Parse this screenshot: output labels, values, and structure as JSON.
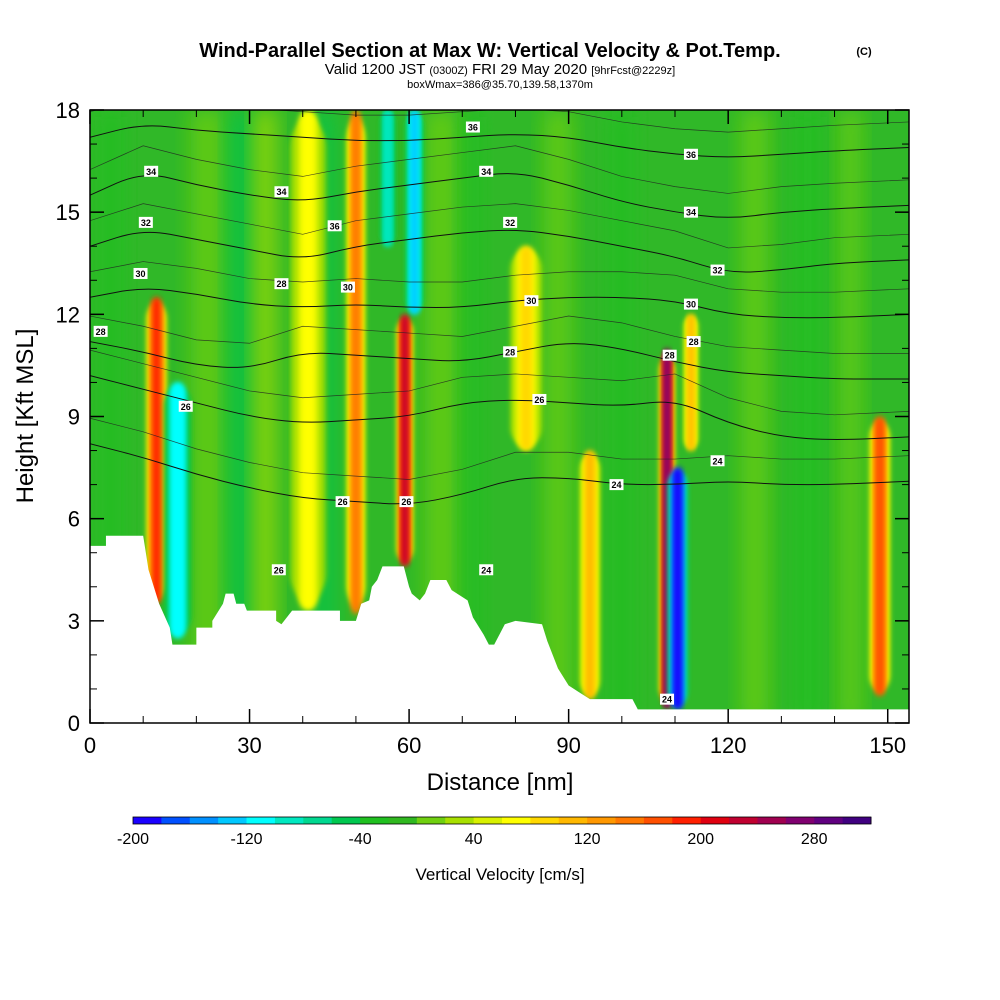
{
  "title": {
    "main": "Wind-Parallel Section at Max W: Vertical Velocity & Pot.Temp.",
    "main_suffix": "(C)",
    "valid_prefix": "Valid 1200 JST",
    "valid_zulu": "(0300Z)",
    "valid_date": "FRI 29 May 2020",
    "forecast": "[9hrFcst@2229z]",
    "box_info": "boxWmax=386@35.70,139.58,1370m"
  },
  "chart_data": {
    "type": "heatmap",
    "xlabel": "Distance [nm]",
    "ylabel": "Height [Kft MSL]",
    "xlim": [
      0,
      154
    ],
    "ylim": [
      0,
      18
    ],
    "x_ticks": [
      "0",
      "30",
      "60",
      "90",
      "120",
      "150"
    ],
    "y_ticks": [
      "0",
      "3",
      "6",
      "9",
      "12",
      "15",
      "18"
    ],
    "x_tick_values": [
      0,
      30,
      60,
      90,
      120,
      150
    ],
    "y_tick_values": [
      0,
      3,
      6,
      9,
      12,
      15,
      18
    ],
    "colorbar": {
      "title": "Vertical Velocity [cm/s]",
      "min": -200,
      "max": 320,
      "step": 20,
      "labels": [
        "-200",
        "-120",
        "-40",
        "40",
        "120",
        "200",
        "280"
      ],
      "label_values": [
        -200,
        -120,
        -40,
        40,
        120,
        200,
        280
      ],
      "colors": [
        "#1a00ff",
        "#0050ff",
        "#0090ff",
        "#00c8ff",
        "#00ffff",
        "#00e8c0",
        "#00d890",
        "#00c850",
        "#20c020",
        "#30b820",
        "#70d010",
        "#a8e000",
        "#d8f000",
        "#ffff00",
        "#ffd800",
        "#ffb800",
        "#ff9800",
        "#ff7800",
        "#ff5000",
        "#ff2000",
        "#e00010",
        "#c00030",
        "#a00050",
        "#800070",
        "#600080",
        "#400080"
      ]
    },
    "terrain_height_kft": [
      [
        0,
        5.2
      ],
      [
        3,
        5.2
      ],
      [
        3,
        5.5
      ],
      [
        10,
        5.5
      ],
      [
        11,
        4.5
      ],
      [
        13,
        3.5
      ],
      [
        15,
        2.8
      ],
      [
        15.5,
        2.3
      ],
      [
        20,
        2.3
      ],
      [
        20,
        2.8
      ],
      [
        23,
        2.8
      ],
      [
        23,
        3.0
      ],
      [
        25,
        3.5
      ],
      [
        25.5,
        3.8
      ],
      [
        27,
        3.8
      ],
      [
        27.5,
        3.5
      ],
      [
        29,
        3.5
      ],
      [
        29.5,
        3.3
      ],
      [
        35,
        3.3
      ],
      [
        35,
        3.0
      ],
      [
        36,
        2.9
      ],
      [
        38,
        3.3
      ],
      [
        47,
        3.3
      ],
      [
        47,
        3.0
      ],
      [
        50,
        3.0
      ],
      [
        51,
        3.5
      ],
      [
        52.5,
        3.6
      ],
      [
        53,
        4.0
      ],
      [
        54,
        4.2
      ],
      [
        55,
        4.6
      ],
      [
        59,
        4.6
      ],
      [
        60,
        4.0
      ],
      [
        60.5,
        3.8
      ],
      [
        62,
        3.6
      ],
      [
        63,
        3.8
      ],
      [
        64,
        4.2
      ],
      [
        67,
        4.2
      ],
      [
        68,
        3.9
      ],
      [
        71,
        3.6
      ],
      [
        72,
        3.1
      ],
      [
        74,
        2.6
      ],
      [
        75,
        2.3
      ],
      [
        76,
        2.3
      ],
      [
        77,
        2.6
      ],
      [
        78,
        2.9
      ],
      [
        80,
        3.0
      ],
      [
        85,
        2.9
      ],
      [
        86,
        2.4
      ],
      [
        88,
        1.6
      ],
      [
        90,
        1.1
      ],
      [
        92,
        0.9
      ],
      [
        94,
        0.7
      ],
      [
        102,
        0.7
      ],
      [
        103,
        0.4
      ],
      [
        154,
        0.4
      ]
    ],
    "terrain_start_kft": [
      [
        0,
        5.2
      ]
    ],
    "updrafts": [
      {
        "x": 12.5,
        "width": 1.6,
        "ymin": 3.5,
        "ymax": 12.5,
        "w_max": 180
      },
      {
        "x": 50,
        "width": 1.5,
        "ymin": 3.2,
        "ymax": 18,
        "w_max": 150
      },
      {
        "x": 59.2,
        "width": 1.3,
        "ymin": 4.6,
        "ymax": 12,
        "w_max": 220
      },
      {
        "x": 94,
        "width": 1.6,
        "ymin": 0.7,
        "ymax": 8,
        "w_max": 110
      },
      {
        "x": 108.5,
        "width": 1.2,
        "ymin": 0.4,
        "ymax": 11,
        "w_max": 260
      },
      {
        "x": 113,
        "width": 1.1,
        "ymin": 8,
        "ymax": 12,
        "w_max": 110
      },
      {
        "x": 148.5,
        "width": 1.6,
        "ymin": 0.8,
        "ymax": 9,
        "w_max": 170
      },
      {
        "x": 82,
        "width": 2.5,
        "ymin": 8,
        "ymax": 14,
        "w_max": 80
      },
      {
        "x": 41,
        "width": 3,
        "ymin": 3.3,
        "ymax": 18,
        "w_max": 60
      }
    ],
    "downdrafts": [
      {
        "x": 16.5,
        "width": 2.2,
        "ymin": 2.5,
        "ymax": 10,
        "w_min": -120
      },
      {
        "x": 110.5,
        "width": 1.6,
        "ymin": 0.4,
        "ymax": 7.5,
        "w_min": -200
      },
      {
        "x": 61,
        "width": 1.5,
        "ymin": 12,
        "ymax": 18,
        "w_min": -130
      },
      {
        "x": 56,
        "width": 1.2,
        "ymin": 14,
        "ymax": 18,
        "w_min": -100
      }
    ],
    "theta_contours": [
      {
        "label": "24",
        "points": [
          [
            0,
            8.2
          ],
          [
            10,
            7.8
          ],
          [
            20,
            7.3
          ],
          [
            30,
            6.9
          ],
          [
            40,
            6.6
          ],
          [
            50,
            6.5
          ],
          [
            60,
            6.4
          ],
          [
            70,
            6.7
          ],
          [
            80,
            7.2
          ],
          [
            90,
            7.2
          ],
          [
            100,
            7.0
          ],
          [
            110,
            7.0
          ],
          [
            120,
            7.1
          ],
          [
            130,
            7.0
          ],
          [
            140,
            7.0
          ],
          [
            154,
            7.1
          ]
        ],
        "label_at": [
          113,
          7.7
        ]
      },
      {
        "label": "26",
        "points": [
          [
            0,
            10.2
          ],
          [
            10,
            9.8
          ],
          [
            20,
            9.4
          ],
          [
            30,
            9.0
          ],
          [
            40,
            8.8
          ],
          [
            50,
            8.9
          ],
          [
            60,
            9.0
          ],
          [
            70,
            9.4
          ],
          [
            80,
            9.5
          ],
          [
            90,
            9.4
          ],
          [
            100,
            9.3
          ],
          [
            110,
            9.5
          ],
          [
            120,
            8.8
          ],
          [
            130,
            8.4
          ],
          [
            140,
            8.3
          ],
          [
            154,
            8.4
          ]
        ],
        "label_at": [
          81,
          9.5
        ]
      },
      {
        "label": "28",
        "points": [
          [
            0,
            11.2
          ],
          [
            10,
            10.9
          ],
          [
            20,
            10.5
          ],
          [
            30,
            10.4
          ],
          [
            40,
            10.9
          ],
          [
            50,
            10.8
          ],
          [
            60,
            10.7
          ],
          [
            70,
            10.6
          ],
          [
            80,
            10.9
          ],
          [
            90,
            11.2
          ],
          [
            100,
            11.0
          ],
          [
            110,
            10.6
          ],
          [
            120,
            10.3
          ],
          [
            130,
            10.2
          ],
          [
            140,
            10.1
          ],
          [
            154,
            10.1
          ]
        ],
        "label_at": [
          78,
          10.9
        ]
      },
      {
        "label": "30",
        "points": [
          [
            0,
            12.5
          ],
          [
            10,
            12.8
          ],
          [
            20,
            12.6
          ],
          [
            30,
            12.3
          ],
          [
            40,
            12.2
          ],
          [
            50,
            12.3
          ],
          [
            60,
            12.2
          ],
          [
            70,
            12.2
          ],
          [
            80,
            12.4
          ],
          [
            90,
            12.5
          ],
          [
            100,
            12.5
          ],
          [
            110,
            12.4
          ],
          [
            120,
            12.0
          ],
          [
            130,
            11.9
          ],
          [
            140,
            11.9
          ],
          [
            154,
            12.0
          ]
        ],
        "label_at": [
          8,
          13.2
        ]
      },
      {
        "label": "32",
        "points": [
          [
            0,
            14.0
          ],
          [
            10,
            14.5
          ],
          [
            20,
            14.2
          ],
          [
            30,
            13.9
          ],
          [
            40,
            13.6
          ],
          [
            50,
            14.0
          ],
          [
            60,
            14.2
          ],
          [
            70,
            14.4
          ],
          [
            80,
            14.5
          ],
          [
            90,
            14.3
          ],
          [
            100,
            14.0
          ],
          [
            110,
            13.7
          ],
          [
            120,
            13.2
          ],
          [
            130,
            13.3
          ],
          [
            140,
            13.5
          ],
          [
            154,
            13.6
          ]
        ],
        "label_at": [
          10,
          14.7
        ]
      },
      {
        "label": "34",
        "points": [
          [
            0,
            15.5
          ],
          [
            10,
            16.2
          ],
          [
            20,
            15.8
          ],
          [
            30,
            15.5
          ],
          [
            40,
            15.3
          ],
          [
            50,
            15.6
          ],
          [
            60,
            15.8
          ],
          [
            70,
            16.0
          ],
          [
            80,
            16.2
          ],
          [
            90,
            15.8
          ],
          [
            100,
            15.3
          ],
          [
            110,
            15.0
          ],
          [
            120,
            14.8
          ],
          [
            130,
            15.0
          ],
          [
            140,
            15.1
          ],
          [
            154,
            15.2
          ]
        ],
        "label_at": [
          75,
          16.2
        ]
      },
      {
        "label": "36",
        "points": [
          [
            0,
            17.2
          ],
          [
            10,
            17.6
          ],
          [
            20,
            17.4
          ],
          [
            30,
            17.3
          ],
          [
            40,
            17.2
          ],
          [
            50,
            17.1
          ],
          [
            60,
            17.1
          ],
          [
            70,
            17.2
          ],
          [
            80,
            17.3
          ],
          [
            90,
            17.2
          ],
          [
            100,
            16.9
          ],
          [
            110,
            16.7
          ],
          [
            120,
            16.6
          ],
          [
            130,
            16.7
          ],
          [
            140,
            16.8
          ],
          [
            154,
            16.9
          ]
        ],
        "label_at": [
          72,
          17.5
        ]
      }
    ],
    "theta_labels": [
      {
        "text": "34",
        "x": 11.5,
        "y": 16.2
      },
      {
        "text": "32",
        "x": 10.5,
        "y": 14.7
      },
      {
        "text": "30",
        "x": 9.5,
        "y": 13.2
      },
      {
        "text": "28",
        "x": 2,
        "y": 11.5
      },
      {
        "text": "26",
        "x": 18,
        "y": 9.3
      },
      {
        "text": "34",
        "x": 36,
        "y": 15.6
      },
      {
        "text": "36",
        "x": 46,
        "y": 14.6
      },
      {
        "text": "28",
        "x": 36,
        "y": 12.9
      },
      {
        "text": "30",
        "x": 48.5,
        "y": 12.8
      },
      {
        "text": "36",
        "x": 72,
        "y": 17.5
      },
      {
        "text": "34",
        "x": 74.5,
        "y": 16.2
      },
      {
        "text": "32",
        "x": 79,
        "y": 14.7
      },
      {
        "text": "30",
        "x": 83,
        "y": 12.4
      },
      {
        "text": "28",
        "x": 79,
        "y": 10.9
      },
      {
        "text": "26",
        "x": 84.5,
        "y": 9.5
      },
      {
        "text": "36",
        "x": 113,
        "y": 16.7
      },
      {
        "text": "34",
        "x": 113,
        "y": 15.0
      },
      {
        "text": "32",
        "x": 118,
        "y": 13.3
      },
      {
        "text": "30",
        "x": 113,
        "y": 12.3
      },
      {
        "text": "28",
        "x": 109,
        "y": 10.8
      },
      {
        "text": "28",
        "x": 113.5,
        "y": 11.2
      },
      {
        "text": "24",
        "x": 118,
        "y": 7.7
      },
      {
        "text": "24",
        "x": 99,
        "y": 7.0
      },
      {
        "text": "26",
        "x": 47.5,
        "y": 6.5
      },
      {
        "text": "26",
        "x": 59.5,
        "y": 6.5
      },
      {
        "text": "26",
        "x": 35.5,
        "y": 4.5
      },
      {
        "text": "24",
        "x": 74.5,
        "y": 4.5
      },
      {
        "text": "24",
        "x": 108.5,
        "y": 0.7
      }
    ]
  }
}
